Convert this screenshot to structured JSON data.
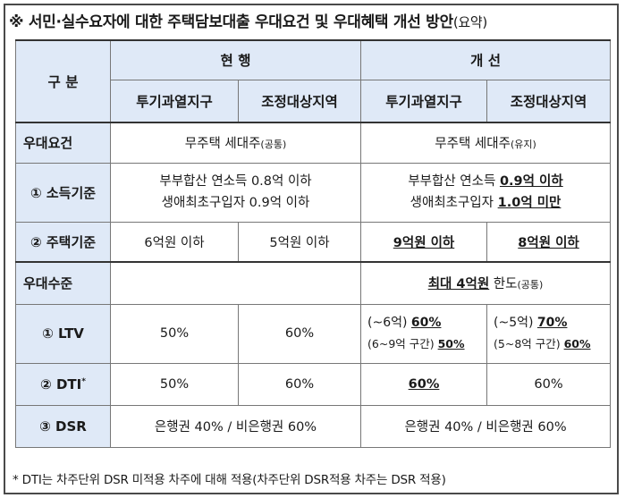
{
  "title": {
    "main": "※ 서민·실수요자에 대한 주택담보대출 우대요건 및 우대혜택 개선 방안",
    "suffix": "(요약)"
  },
  "header": {
    "category": "구 분",
    "current": "현 행",
    "improved": "개 선",
    "region_a": "투기과열지구",
    "region_b": "조정대상지역"
  },
  "rows": {
    "requirement": {
      "label": "우대요건",
      "current_main": "무주택 세대주",
      "current_note": "(공통)",
      "improved_main": "무주택 세대주",
      "improved_note": "(유지)"
    },
    "income": {
      "label": "① 소득기준",
      "current_line1": "부부합산 연소득 0.8억 이하",
      "current_line2": "생애최초구입자 0.9억 이하",
      "improved_line1_prefix": "부부합산 연소득 ",
      "improved_line1_value": "0.9억 이하",
      "improved_line2_prefix": "생애최초구입자 ",
      "improved_line2_value": "1.0억 미만"
    },
    "housing": {
      "label": "② 주택기준",
      "current_a": "6억원 이하",
      "current_b": "5억원 이하",
      "improved_a": "9억원 이하",
      "improved_b": "8억원 이하"
    },
    "benefit": {
      "label": "우대수준",
      "improved_value": "최대 4억원",
      "improved_suffix": " 한도",
      "improved_note": "(공통)"
    },
    "ltv": {
      "label": "① LTV",
      "current_a": "50%",
      "current_b": "60%",
      "improved_a_line1_prefix": "(~6억) ",
      "improved_a_line1_value": "60%",
      "improved_a_line2_prefix": "(6~9억 구간) ",
      "improved_a_line2_value": "50%",
      "improved_b_line1_prefix": "(~5억) ",
      "improved_b_line1_value": "70%",
      "improved_b_line2_prefix": "(5~8억 구간) ",
      "improved_b_line2_value": "60%"
    },
    "dti": {
      "label": "② DTI",
      "label_mark": "*",
      "current_a": "50%",
      "current_b": "60%",
      "improved_a": "60%",
      "improved_b": "60%"
    },
    "dsr": {
      "label": "③ DSR",
      "current": "은행권 40% / 비은행권 60%",
      "improved": "은행권 40% / 비은행권 60%"
    }
  },
  "footnote": "* DTI는 차주단위 DSR 미적용 차주에 대해 적용(차주단위 DSR적용 차주는 DSR 적용)"
}
